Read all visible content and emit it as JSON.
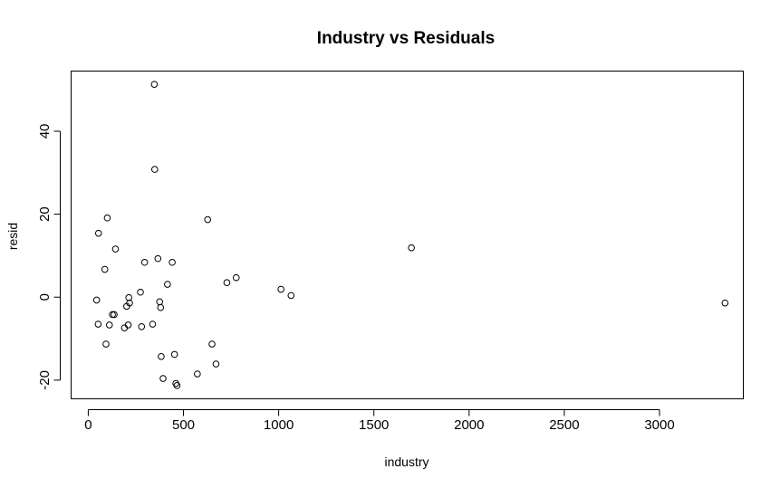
{
  "chart_data": {
    "type": "scatter",
    "title": "Industry vs Residuals",
    "xlabel": "industry",
    "ylabel": "resid",
    "xlim": [
      -90,
      3440
    ],
    "ylim": [
      -24.5,
      54.5
    ],
    "x_ticks": [
      0,
      500,
      1000,
      1500,
      2000,
      2500,
      3000
    ],
    "y_ticks": [
      -20,
      0,
      20,
      40
    ],
    "grid": false,
    "marker": "open-circle",
    "points": [
      {
        "x": 347,
        "y": 51.3
      },
      {
        "x": 349,
        "y": 30.8
      },
      {
        "x": 100,
        "y": 19.1
      },
      {
        "x": 627,
        "y": 18.7
      },
      {
        "x": 54,
        "y": 15.4
      },
      {
        "x": 1697,
        "y": 11.9
      },
      {
        "x": 143,
        "y": 11.6
      },
      {
        "x": 366,
        "y": 9.3
      },
      {
        "x": 296,
        "y": 8.4
      },
      {
        "x": 441,
        "y": 8.4
      },
      {
        "x": 87,
        "y": 6.7
      },
      {
        "x": 777,
        "y": 4.7
      },
      {
        "x": 728,
        "y": 3.5
      },
      {
        "x": 416,
        "y": 3.1
      },
      {
        "x": 1012,
        "y": 1.9
      },
      {
        "x": 274,
        "y": 1.2
      },
      {
        "x": 1065,
        "y": 0.4
      },
      {
        "x": 213,
        "y": -0.1
      },
      {
        "x": 44,
        "y": -0.7
      },
      {
        "x": 375,
        "y": -1.1
      },
      {
        "x": 217,
        "y": -1.4
      },
      {
        "x": 3344,
        "y": -1.4
      },
      {
        "x": 202,
        "y": -2.2
      },
      {
        "x": 380,
        "y": -2.5
      },
      {
        "x": 127,
        "y": -4.2
      },
      {
        "x": 136,
        "y": -4.2
      },
      {
        "x": 52,
        "y": -6.5
      },
      {
        "x": 338,
        "y": -6.5
      },
      {
        "x": 111,
        "y": -6.7
      },
      {
        "x": 210,
        "y": -6.7
      },
      {
        "x": 280,
        "y": -7.1
      },
      {
        "x": 190,
        "y": -7.4
      },
      {
        "x": 93,
        "y": -11.3
      },
      {
        "x": 650,
        "y": -11.3
      },
      {
        "x": 453,
        "y": -13.8
      },
      {
        "x": 383,
        "y": -14.3
      },
      {
        "x": 671,
        "y": -16.1
      },
      {
        "x": 573,
        "y": -18.5
      },
      {
        "x": 393,
        "y": -19.6
      },
      {
        "x": 460,
        "y": -20.8
      },
      {
        "x": 466,
        "y": -21.3
      }
    ]
  }
}
